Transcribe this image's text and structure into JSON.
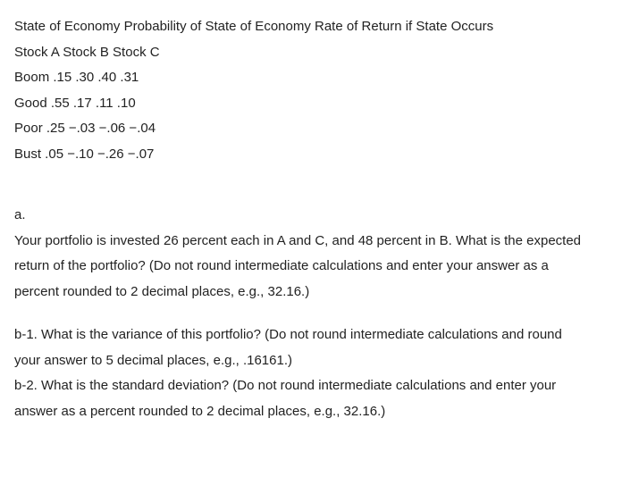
{
  "header": {
    "line1": "State of Economy Probability of State of Economy Rate of Return if State Occurs",
    "line2": "Stock A Stock B Stock C"
  },
  "data": {
    "boom": "Boom .15 .30 .40 .31",
    "good": "Good .55 .17 .11 .10",
    "poor": "Poor .25 −.03 −.06 −.04",
    "bust": "Bust .05 −.10 −.26 −.07"
  },
  "qa": {
    "label": "a.",
    "text1": "Your portfolio is invested 26 percent each in A and C, and 48 percent in B. What is the expected",
    "text2": "return of the portfolio? (Do not round intermediate calculations and enter your answer as a",
    "text3": "percent rounded to 2 decimal places, e.g., 32.16.)"
  },
  "qb1": {
    "text1": "b-1. What is the variance of this portfolio? (Do not round intermediate calculations and round",
    "text2": "your answer to 5 decimal places, e.g., .16161.)"
  },
  "qb2": {
    "text1": "b-2. What is the standard deviation? (Do not round intermediate calculations and enter your",
    "text2": "answer as a percent rounded to 2 decimal places, e.g., 32.16.)"
  }
}
